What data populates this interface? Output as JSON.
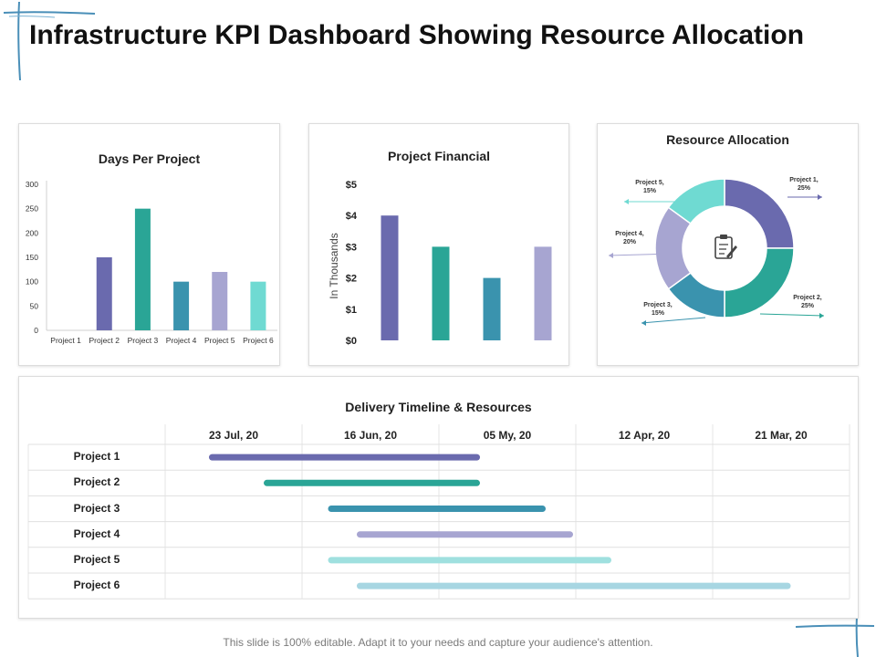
{
  "title": "Infrastructure KPI Dashboard Showing Resource Allocation",
  "footer": "This slide is 100% editable. Adapt it to your needs and capture your audience's attention.",
  "colors": {
    "purple": "#6a6aae",
    "teal": "#2aa596",
    "blue_teal": "#3a93ae",
    "lavender": "#a7a5d1",
    "aqua": "#6fdad2",
    "light_aqua": "#9fe0df",
    "light_blue": "#a7d6e2",
    "deco_blue": "#4a8fb8"
  },
  "chart_data": [
    {
      "type": "bar",
      "title": "Days Per Project",
      "categories": [
        "Project 1",
        "Project 2",
        "Project 3",
        "Project 4",
        "Project 5",
        "Project 6"
      ],
      "values": [
        0,
        150,
        250,
        100,
        120,
        100
      ],
      "ylim": [
        0,
        300
      ],
      "yticks": [
        "0",
        "50",
        "100",
        "150",
        "200",
        "250",
        "300"
      ],
      "bar_colors": [
        "#6a6aae",
        "#6a6aae",
        "#2aa596",
        "#3a93ae",
        "#a7a5d1",
        "#6fdad2"
      ],
      "grid": false
    },
    {
      "type": "bar",
      "title": "Project Financial",
      "ylabel": "In Thousands",
      "values": [
        4,
        3,
        2,
        3
      ],
      "ylim": [
        0,
        5
      ],
      "yticks": [
        "$0",
        "$1",
        "$2",
        "$3",
        "$4",
        "$5"
      ],
      "bar_colors": [
        "#6a6aae",
        "#2aa596",
        "#3a93ae",
        "#a7a5d1"
      ],
      "grid": false
    },
    {
      "type": "pie",
      "title": "Resource Allocation",
      "center_icon": "clipboard-icon",
      "slices": [
        {
          "label1": "Project 1,",
          "label2": "25%",
          "value": 25,
          "color": "#6a6aae"
        },
        {
          "label1": "Project 2,",
          "label2": "25%",
          "value": 25,
          "color": "#2aa596"
        },
        {
          "label1": "Project 3,",
          "label2": "15%",
          "value": 15,
          "color": "#3a93ae"
        },
        {
          "label1": "Project 4,",
          "label2": "20%",
          "value": 20,
          "color": "#a7a5d1"
        },
        {
          "label1": "Project 5,",
          "label2": "15%",
          "value": 15,
          "color": "#6fdad2"
        }
      ]
    }
  ],
  "timeline": {
    "title": "Delivery Timeline & Resources",
    "columns": [
      "23 Jul, 20",
      "16 Jun, 20",
      "05 My, 20",
      "12 Apr, 20",
      "21 Mar, 20"
    ],
    "rows": [
      {
        "label": "Project 1",
        "start": 0.32,
        "end": 2.3,
        "color": "#6a6aae"
      },
      {
        "label": "Project 2",
        "start": 0.72,
        "end": 2.3,
        "color": "#2aa596"
      },
      {
        "label": "Project 3",
        "start": 1.19,
        "end": 2.78,
        "color": "#3a93ae"
      },
      {
        "label": "Project 4",
        "start": 1.4,
        "end": 2.98,
        "color": "#a7a5d1"
      },
      {
        "label": "Project 5",
        "start": 1.19,
        "end": 3.26,
        "color": "#9fe0df"
      },
      {
        "label": "Project 6",
        "start": 1.4,
        "end": 4.57,
        "color": "#a7d6e2"
      }
    ]
  }
}
